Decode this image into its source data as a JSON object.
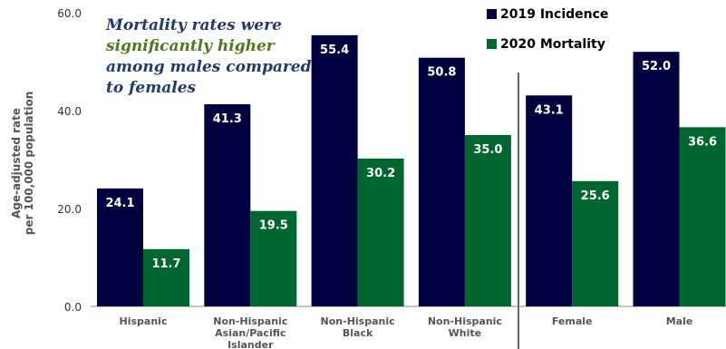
{
  "chart_data": {
    "type": "bar",
    "categories": [
      [
        "Hispanic"
      ],
      [
        "Non-Hispanic",
        "Asian/Pacific",
        "Islander"
      ],
      [
        "Non-Hispanic",
        "Black"
      ],
      [
        "Non-Hispanic",
        "White"
      ],
      [
        "Female"
      ],
      [
        "Male"
      ]
    ],
    "series": [
      {
        "name": "2019 Incidence",
        "color": "#00003f",
        "values": [
          24.1,
          41.3,
          55.4,
          50.8,
          43.1,
          52.0
        ],
        "labels": [
          "24.1",
          "41.3",
          "55.4",
          "50.8",
          "43.1",
          "52.0"
        ]
      },
      {
        "name": "2020 Mortality",
        "color": "#00662f",
        "values": [
          11.7,
          19.5,
          30.2,
          35.0,
          25.6,
          36.6
        ],
        "labels": [
          "11.7",
          "19.5",
          "30.2",
          "35.0",
          "25.6",
          "36.6"
        ]
      }
    ],
    "ylabel": [
      "Age-adjusted rate",
      "per 100,000 population"
    ],
    "yticks": [
      0,
      20,
      40,
      60
    ],
    "ytick_labels": [
      "0.0",
      "20.0",
      "40.0",
      "60.0"
    ],
    "ylim": [
      0,
      60
    ],
    "grid": false,
    "legend_position": "top-right",
    "annotation": {
      "lines": [
        {
          "text": "Mortality rates were",
          "color": "#1f3a6e"
        },
        {
          "text": "significantly higher",
          "color": "#4e7a1c"
        },
        {
          "text": "among males compared",
          "color": "#1f3a6e"
        },
        {
          "text": "to females",
          "color": "#1f3a6e"
        }
      ]
    }
  }
}
